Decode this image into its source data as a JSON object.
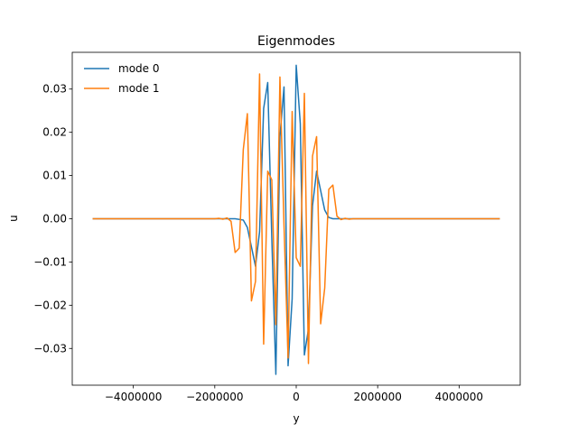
{
  "chart_data": {
    "type": "line",
    "title": "Eigenmodes",
    "xlabel": "y",
    "ylabel": "u",
    "xlim": [
      -5500000,
      5500000
    ],
    "ylim": [
      -0.0385,
      0.0385
    ],
    "xticks": [
      -4000000,
      -2000000,
      0,
      2000000,
      4000000
    ],
    "xtick_labels": [
      "−4000000",
      "−2000000",
      "0",
      "2000000",
      "4000000"
    ],
    "yticks": [
      -0.03,
      -0.02,
      -0.01,
      0.0,
      0.01,
      0.02,
      0.03
    ],
    "ytick_labels": [
      "−0.03",
      "−0.02",
      "−0.01",
      "0.00",
      "0.01",
      "0.02",
      "0.03"
    ],
    "grid": false,
    "legend": "top-left",
    "colors": [
      "#1f77b4",
      "#ff7f0e"
    ],
    "series": [
      {
        "name": "mode 0",
        "x": [
          -5000000,
          -1500000,
          -1300000,
          -1200000,
          -1100000,
          -1000000,
          -900000,
          -800000,
          -700000,
          -600000,
          -500000,
          -400000,
          -300000,
          -200000,
          -100000,
          0,
          100000,
          200000,
          300000,
          400000,
          500000,
          600000,
          700000,
          800000,
          900000,
          1000000,
          1100000,
          1200000,
          1300000,
          1500000,
          5000000
        ],
        "values": [
          0.0,
          0.0,
          -0.0003,
          -0.002,
          -0.0065,
          -0.011,
          -0.003,
          0.0255,
          0.0315,
          -0.0045,
          -0.036,
          0.019,
          0.0305,
          -0.034,
          -0.0185,
          0.0355,
          0.022,
          -0.0315,
          -0.0255,
          0.003,
          0.011,
          0.0065,
          0.002,
          0.0003,
          0.0,
          0.0,
          0.0,
          0.0,
          0.0,
          0.0,
          0.0
        ]
      },
      {
        "name": "mode 1",
        "x": [
          -5000000,
          -2000000,
          -1900000,
          -1800000,
          -1700000,
          -1600000,
          -1500000,
          -1400000,
          -1300000,
          -1200000,
          -1100000,
          -1000000,
          -900000,
          -800000,
          -700000,
          -600000,
          -500000,
          -400000,
          -300000,
          -200000,
          -100000,
          0,
          100000,
          200000,
          300000,
          400000,
          500000,
          600000,
          700000,
          800000,
          900000,
          1000000,
          1100000,
          1200000,
          1300000,
          1400000,
          1500000,
          1600000,
          1700000,
          1800000,
          1900000,
          2000000,
          5000000
        ],
        "values": [
          0.0,
          0.0,
          0.0001,
          -0.0001,
          0.0002,
          -0.0006,
          -0.0078,
          -0.0068,
          0.016,
          0.0243,
          -0.019,
          -0.0145,
          0.0335,
          -0.029,
          0.011,
          0.009,
          -0.0245,
          0.0328,
          -0.0015,
          -0.0322,
          0.0248,
          -0.009,
          -0.011,
          0.029,
          -0.0335,
          0.0145,
          0.019,
          -0.0243,
          -0.016,
          0.0068,
          0.0078,
          0.0006,
          -0.0002,
          0.0001,
          -0.0001,
          0.0,
          0.0,
          0.0,
          0.0,
          0.0,
          0.0,
          0.0,
          0.0
        ]
      }
    ]
  }
}
